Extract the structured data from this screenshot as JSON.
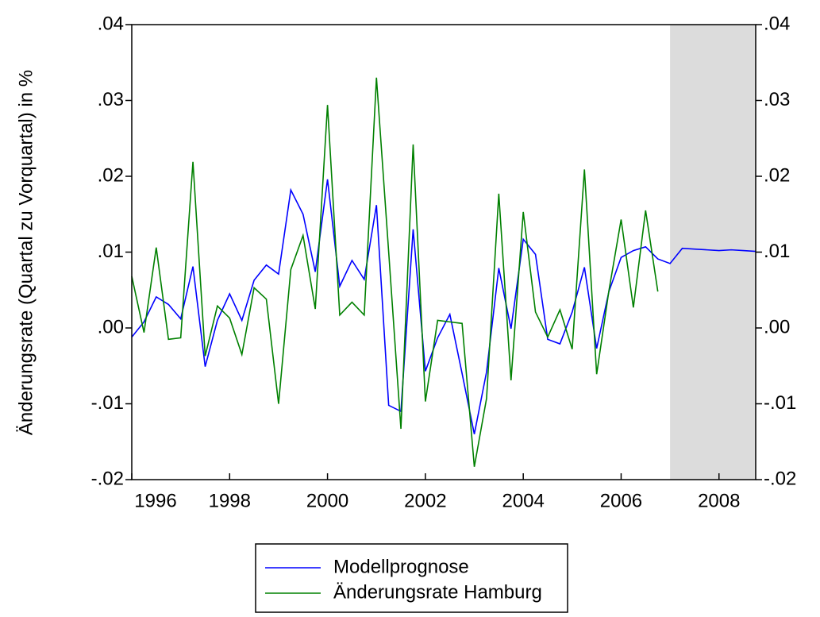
{
  "chart_data": {
    "type": "line",
    "y_label": "Änderungsrate (Quartal zu Vorquartal) in %",
    "x": [
      1996,
      1996.25,
      1996.5,
      1996.75,
      1997,
      1997.25,
      1997.5,
      1997.75,
      1998,
      1998.25,
      1998.5,
      1998.75,
      1999,
      1999.25,
      1999.5,
      1999.75,
      2000,
      2000.25,
      2000.5,
      2000.75,
      2001,
      2001.25,
      2001.5,
      2001.75,
      2002,
      2002.25,
      2002.5,
      2002.75,
      2003,
      2003.25,
      2003.5,
      2003.75,
      2004,
      2004.25,
      2004.5,
      2004.75,
      2005,
      2005.25,
      2005.5,
      2005.75,
      2006,
      2006.25,
      2006.5,
      2006.75,
      2007,
      2007.25,
      2007.5,
      2007.75,
      2008,
      2008.25,
      2008.5,
      2008.75
    ],
    "series": [
      {
        "name": "Modellprognose",
        "color": "#0000ff",
        "values": [
          -0.0012,
          0.0008,
          0.0041,
          0.0031,
          0.0012,
          0.0081,
          -0.0051,
          0.001,
          0.0045,
          0.001,
          0.0063,
          0.0083,
          0.0071,
          0.0182,
          0.015,
          0.0074,
          0.0196,
          0.0055,
          0.0089,
          0.0064,
          0.0162,
          -0.0102,
          -0.011,
          0.013,
          -0.0057,
          -0.0013,
          0.0018,
          -0.006,
          -0.014,
          -0.0058,
          0.0079,
          -0.0001,
          0.0117,
          0.0097,
          -0.0015,
          -0.0021,
          0.0021,
          0.008,
          -0.0027,
          0.0048,
          0.0093,
          0.0102,
          0.0107,
          0.0091,
          0.0085,
          0.0105,
          0.0104,
          0.0103,
          0.0102,
          0.0103,
          0.0102,
          0.0101
        ]
      },
      {
        "name": "Änderungsrate Hamburg",
        "color": "#008000",
        "values": [
          0.0068,
          -0.0006,
          0.0106,
          -0.0015,
          -0.0013,
          0.0219,
          -0.0037,
          0.0029,
          0.0013,
          -0.0035,
          0.0053,
          0.0038,
          -0.01,
          0.0077,
          0.0122,
          0.0025,
          0.0294,
          0.0017,
          0.0034,
          0.0017,
          0.033,
          0.01,
          -0.0133,
          0.0242,
          -0.0097,
          0.001,
          0.0008,
          0.0006,
          -0.0183,
          -0.0093,
          0.0177,
          -0.0069,
          0.0153,
          0.0021,
          -0.0012,
          0.0024,
          -0.0028,
          0.0209,
          -0.0061,
          0.0049,
          0.0143,
          0.0027,
          0.0155,
          0.0048,
          null,
          null,
          null,
          null,
          null,
          null,
          null,
          null
        ]
      }
    ],
    "shade": [
      2007,
      2008.75
    ],
    "xlim": [
      1996,
      2008.75
    ],
    "xticks": [
      1996,
      1998,
      2000,
      2002,
      2004,
      2006,
      2008
    ],
    "ylim": [
      -0.02,
      0.04
    ],
    "yticks": [
      {
        "value": -0.02,
        "label": "-.02"
      },
      {
        "value": -0.01,
        "label": "-.01"
      },
      {
        "value": 0,
        "label": ".00"
      },
      {
        "value": 0.01,
        "label": ".01"
      },
      {
        "value": 0.02,
        "label": ".02"
      },
      {
        "value": 0.03,
        "label": ".03"
      },
      {
        "value": 0.04,
        "label": ".04"
      }
    ],
    "y2lim": [
      -0.02,
      0.04
    ],
    "y2ticks": [
      {
        "value": -0.02,
        "label": "-.02"
      },
      {
        "value": -0.01,
        "label": "-.01"
      },
      {
        "value": 0,
        "label": ".00"
      },
      {
        "value": 0.01,
        "label": ".01"
      },
      {
        "value": 0.02,
        "label": ".02"
      },
      {
        "value": 0.03,
        "label": ".03"
      },
      {
        "value": 0.04,
        "label": ".04"
      }
    ]
  }
}
